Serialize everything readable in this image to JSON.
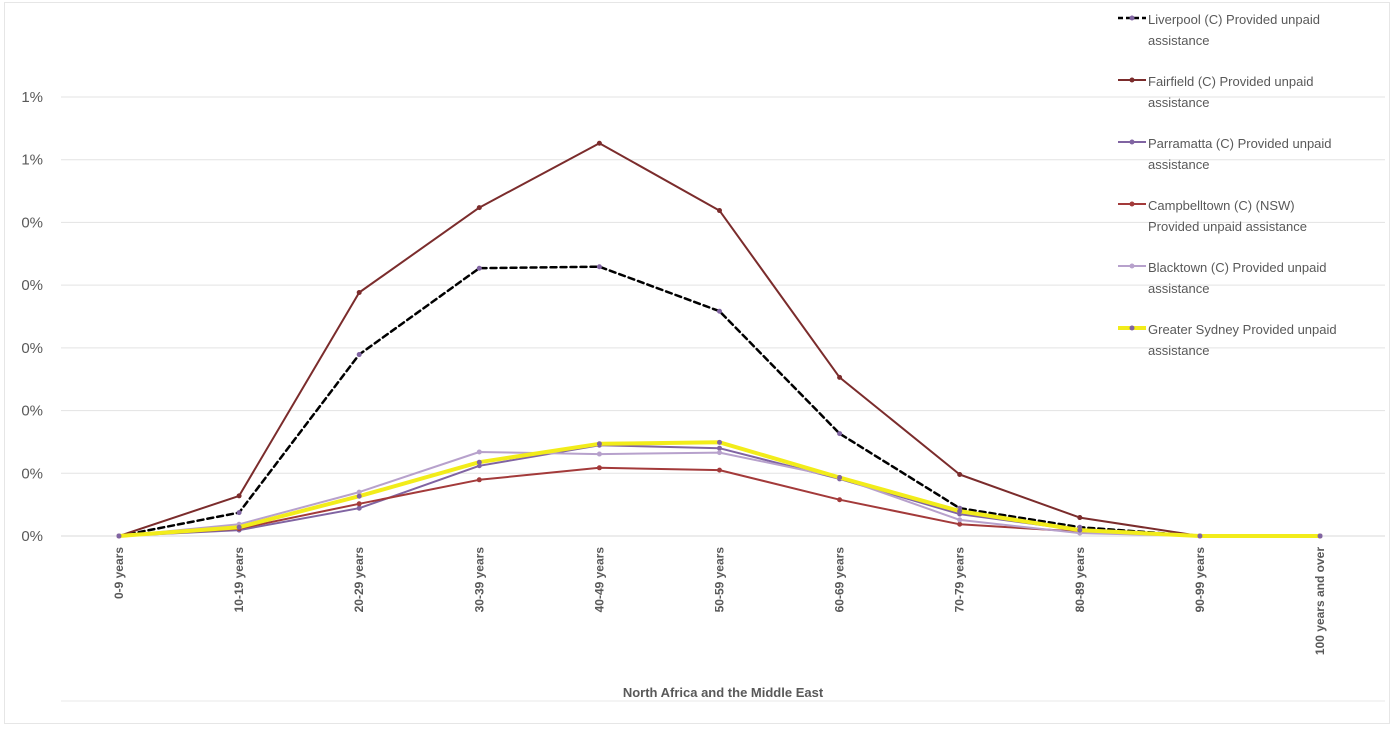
{
  "chart_data": {
    "type": "line",
    "xlabel": "North Africa and the Middle East",
    "ylabel": "",
    "title": "",
    "categories": [
      "0-9 years",
      "10-19 years",
      "20-29 years",
      "30-39 years",
      "40-49 years",
      "50-59 years",
      "60-69 years",
      "70-79 years",
      "80-89 years",
      "90-99 years",
      "100 years and over"
    ],
    "y_tick_labels": [
      "0%",
      "0%",
      "0%",
      "0%",
      "0%",
      "0%",
      "1%",
      "1%"
    ],
    "ylim": [
      0,
      1.5
    ],
    "grid": true,
    "legend_position": "right",
    "series": [
      {
        "name": "Liverpool (C) Provided unpaid assistance",
        "color": "#000000",
        "style": "dashed",
        "values": [
          0,
          0.08,
          0.62,
          0.915,
          0.92,
          0.768,
          0.35,
          0.095,
          0.03,
          0,
          0
        ]
      },
      {
        "name": "Fairfield (C) Provided unpaid assistance",
        "color": "#7b2c2c",
        "style": "solid",
        "values": [
          0,
          0.137,
          0.832,
          1.122,
          1.342,
          1.112,
          0.542,
          0.21,
          0.063,
          0,
          0
        ]
      },
      {
        "name": "Parramatta (C) Provided unpaid assistance",
        "color": "#8064a2",
        "style": "solid",
        "values": [
          0,
          0.02,
          0.095,
          0.24,
          0.31,
          0.3,
          0.195,
          0.075,
          0.02,
          0,
          0
        ]
      },
      {
        "name": "Campbelltown (C) (NSW) Provided unpaid assistance",
        "color": "#a33a3a",
        "style": "solid",
        "values": [
          0,
          0.025,
          0.11,
          0.192,
          0.233,
          0.225,
          0.124,
          0.04,
          0.015,
          0,
          0
        ]
      },
      {
        "name": "Blacktown (C) Provided unpaid assistance",
        "color": "#b7a1cc",
        "style": "solid",
        "values": [
          0,
          0.04,
          0.15,
          0.287,
          0.28,
          0.285,
          0.2,
          0.055,
          0.01,
          0,
          0
        ]
      },
      {
        "name": "Greater Sydney Provided unpaid assistance",
        "color": "#f2ec1a",
        "style": "thick",
        "values": [
          0,
          0.03,
          0.136,
          0.252,
          0.315,
          0.32,
          0.2,
          0.085,
          0.02,
          0,
          0
        ]
      }
    ]
  }
}
